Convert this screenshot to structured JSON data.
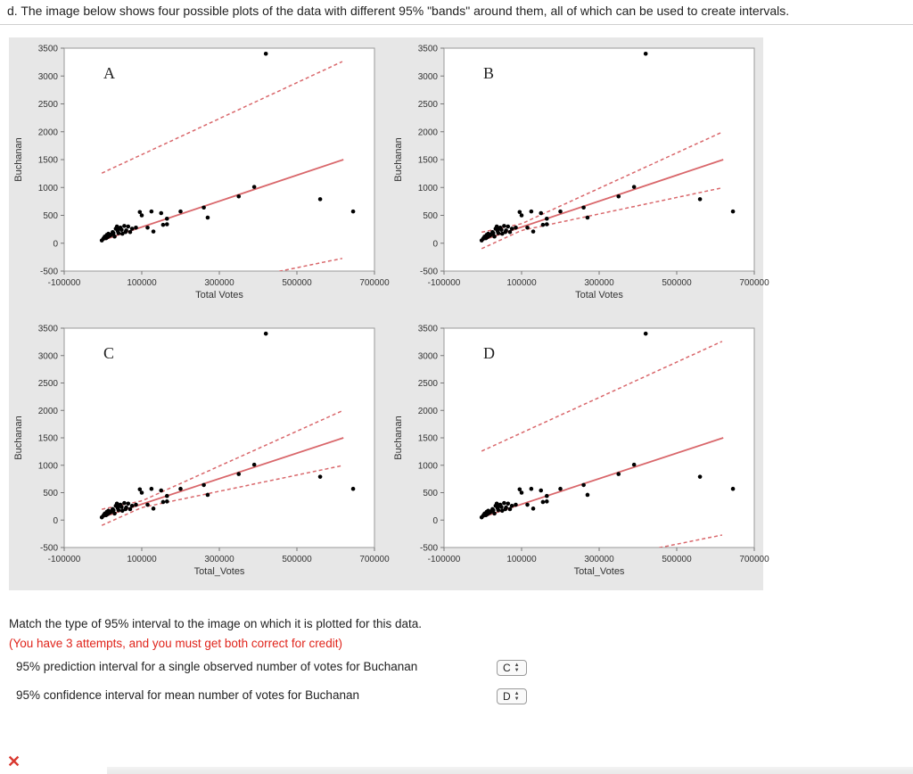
{
  "header": {
    "text": "d. The image below shows four possible plots of the data with different 95% \"bands\" around them, all of which can be used to create intervals."
  },
  "colors": {
    "line": "#d9676b",
    "point": "#000000",
    "attempts_text": "#e0241b",
    "panel_bg": "#e7e7e7"
  },
  "chart_data": [
    {
      "type": "scatter",
      "panel": "A",
      "xlabel": "Total Votes",
      "ylabel": "Buchanan",
      "xticks": [
        "-100000",
        "100000",
        "300000",
        "500000",
        "700000"
      ],
      "yticks": [
        "3500",
        "3000",
        "2500",
        "2000",
        "1500",
        "1000",
        "500",
        "0",
        "-500"
      ],
      "xlim": [
        -100000,
        700000
      ],
      "ylim": [
        -500,
        3500
      ],
      "band": "wide",
      "fit_line": [
        [
          -3000,
          50
        ],
        [
          620000,
          1500
        ]
      ]
    },
    {
      "type": "scatter",
      "panel": "B",
      "xlabel": "Total Votes",
      "ylabel": "Buchanan",
      "xticks": [
        "-100000",
        "100000",
        "300000",
        "500000",
        "700000"
      ],
      "yticks": [
        "3500",
        "3000",
        "2500",
        "2000",
        "1500",
        "1000",
        "500",
        "0",
        "-500"
      ],
      "xlim": [
        -100000,
        700000
      ],
      "ylim": [
        -500,
        3500
      ],
      "band": "narrow",
      "fit_line": [
        [
          -3000,
          50
        ],
        [
          620000,
          1500
        ]
      ]
    },
    {
      "type": "scatter",
      "panel": "C",
      "xlabel": "Total_Votes",
      "ylabel": "Buchanan",
      "xticks": [
        "-100000",
        "100000",
        "300000",
        "500000",
        "700000"
      ],
      "yticks": [
        "3500",
        "3000",
        "2500",
        "2000",
        "1500",
        "1000",
        "500",
        "0",
        "-500"
      ],
      "xlim": [
        -100000,
        700000
      ],
      "ylim": [
        -500,
        3500
      ],
      "band": "narrow",
      "fit_line": [
        [
          -3000,
          50
        ],
        [
          620000,
          1500
        ]
      ]
    },
    {
      "type": "scatter",
      "panel": "D",
      "xlabel": "Total_Votes",
      "ylabel": "Buchanan",
      "xticks": [
        "-100000",
        "100000",
        "300000",
        "500000",
        "700000"
      ],
      "yticks": [
        "3500",
        "3000",
        "2500",
        "2000",
        "1500",
        "1000",
        "500",
        "0",
        "-500"
      ],
      "xlim": [
        -100000,
        700000
      ],
      "ylim": [
        -500,
        3500
      ],
      "band": "wide",
      "fit_line": [
        [
          -3000,
          50
        ],
        [
          620000,
          1500
        ]
      ]
    }
  ],
  "points": [
    [
      -3000,
      50
    ],
    [
      1000,
      80
    ],
    [
      3000,
      100
    ],
    [
      5000,
      120
    ],
    [
      8000,
      90
    ],
    [
      10000,
      150
    ],
    [
      12000,
      110
    ],
    [
      14000,
      170
    ],
    [
      16000,
      130
    ],
    [
      19000,
      140
    ],
    [
      22000,
      160
    ],
    [
      25000,
      200
    ],
    [
      27000,
      180
    ],
    [
      30000,
      120
    ],
    [
      33000,
      260
    ],
    [
      36000,
      300
    ],
    [
      38000,
      220
    ],
    [
      40000,
      180
    ],
    [
      42000,
      270
    ],
    [
      45000,
      280
    ],
    [
      48000,
      240
    ],
    [
      50000,
      170
    ],
    [
      55000,
      310
    ],
    [
      58000,
      200
    ],
    [
      60000,
      230
    ],
    [
      65000,
      300
    ],
    [
      70000,
      200
    ],
    [
      75000,
      260
    ],
    [
      85000,
      280
    ],
    [
      95000,
      560
    ],
    [
      100000,
      500
    ],
    [
      115000,
      280
    ],
    [
      125000,
      570
    ],
    [
      130000,
      210
    ],
    [
      150000,
      540
    ],
    [
      155000,
      330
    ],
    [
      165000,
      440
    ],
    [
      165000,
      340
    ],
    [
      200000,
      570
    ],
    [
      260000,
      640
    ],
    [
      270000,
      460
    ],
    [
      350000,
      840
    ],
    [
      390000,
      1010
    ],
    [
      420000,
      3400
    ],
    [
      560000,
      790
    ],
    [
      645000,
      570
    ]
  ],
  "question": {
    "prompt": "Match the type of 95% interval to the image on which it is plotted for this data.",
    "attempts": "(You have 3 attempts, and you must get both correct for credit)",
    "items": [
      {
        "label": "95% prediction interval for a single observed number of votes for Buchanan",
        "selected": "C"
      },
      {
        "label": "95% confidence interval for mean number of votes for Buchanan",
        "selected": "D"
      }
    ]
  }
}
